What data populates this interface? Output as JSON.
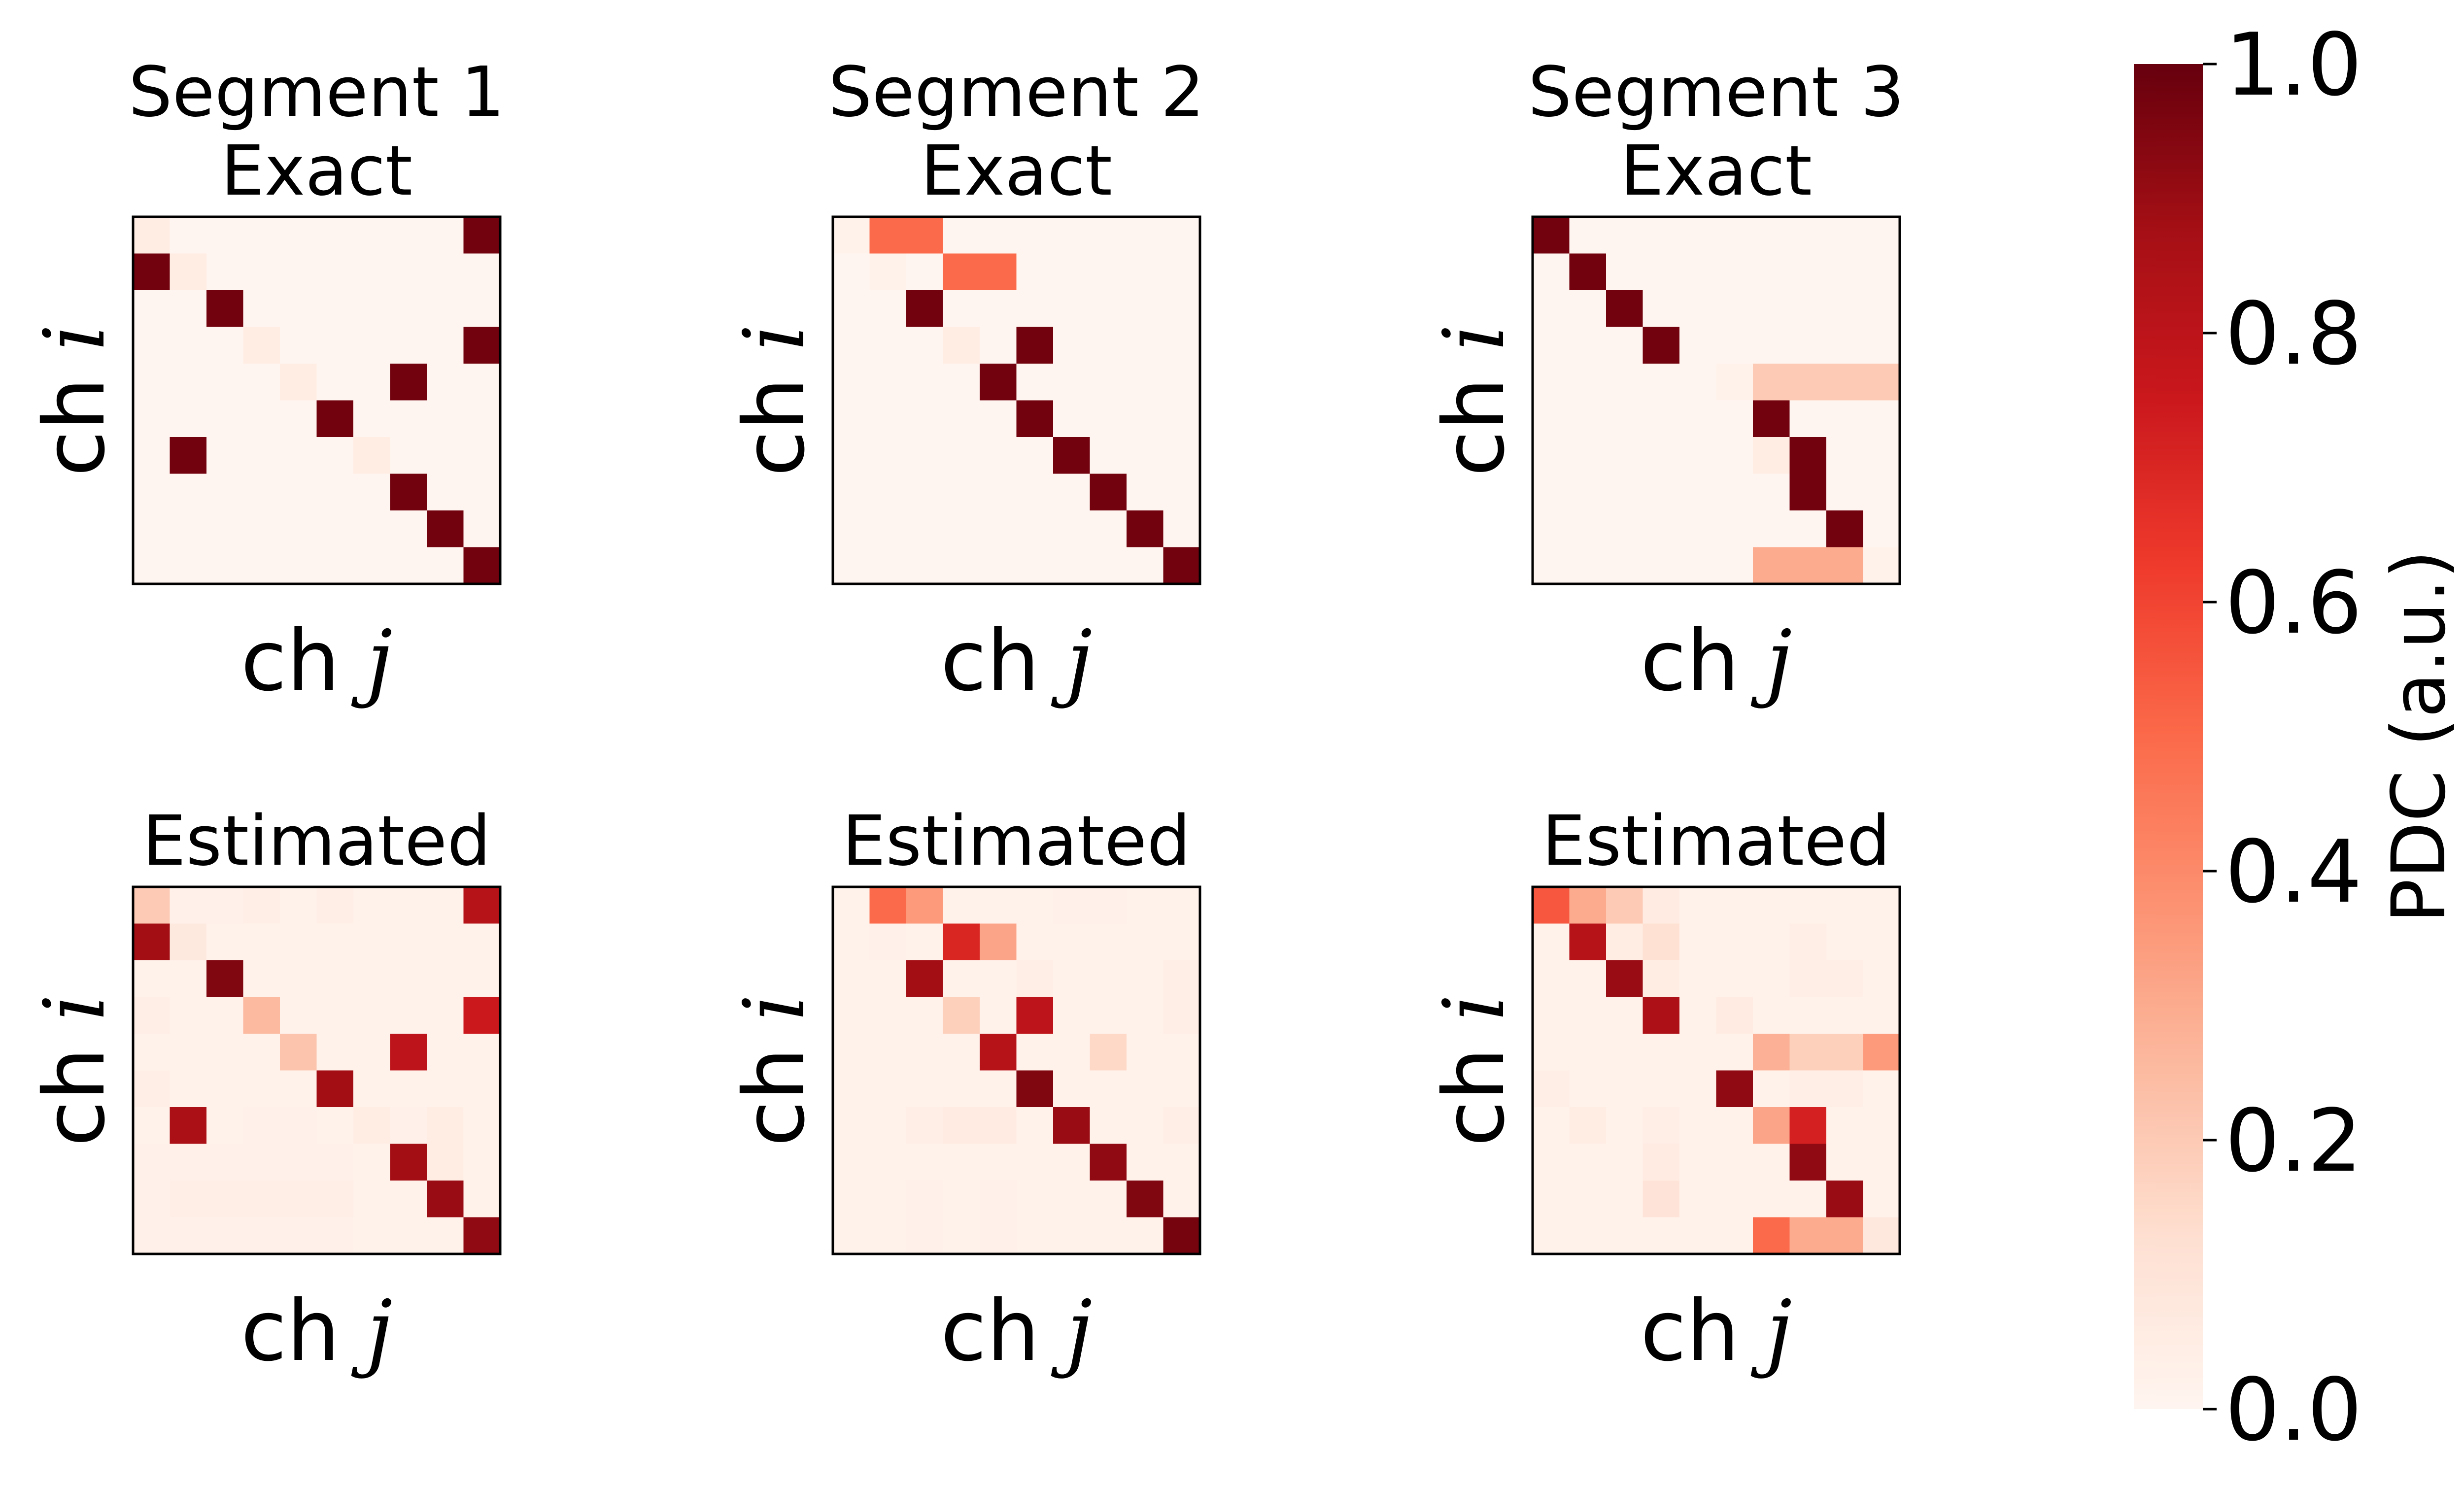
{
  "chart_data": [
    {
      "type": "heatmap",
      "title_lines": [
        "Segment 1",
        "Exact"
      ],
      "xlabel": {
        "prefix": "ch",
        "var": "j"
      },
      "ylabel": {
        "prefix": "ch",
        "var": "i"
      },
      "values": [
        [
          0.05,
          0,
          0,
          0,
          0,
          0,
          0,
          0,
          0,
          0.98
        ],
        [
          0.98,
          0.05,
          0,
          0,
          0,
          0,
          0,
          0,
          0,
          0
        ],
        [
          0,
          0,
          0.98,
          0,
          0,
          0,
          0,
          0,
          0,
          0
        ],
        [
          0,
          0,
          0,
          0.05,
          0,
          0,
          0,
          0,
          0,
          0.98
        ],
        [
          0,
          0,
          0,
          0,
          0.05,
          0,
          0,
          0.98,
          0,
          0
        ],
        [
          0,
          0,
          0,
          0,
          0,
          0.98,
          0,
          0,
          0,
          0
        ],
        [
          0,
          0.98,
          0,
          0,
          0,
          0,
          0.05,
          0,
          0,
          0
        ],
        [
          0,
          0,
          0,
          0,
          0,
          0,
          0,
          0.98,
          0,
          0
        ],
        [
          0,
          0,
          0,
          0,
          0,
          0,
          0,
          0,
          0.98,
          0
        ],
        [
          0,
          0,
          0,
          0,
          0,
          0,
          0,
          0,
          0,
          0.98
        ]
      ]
    },
    {
      "type": "heatmap",
      "title_lines": [
        "Segment 2",
        "Exact"
      ],
      "xlabel": {
        "prefix": "ch",
        "var": "j"
      },
      "ylabel": {
        "prefix": "ch",
        "var": "i"
      },
      "values": [
        [
          0.02,
          0.5,
          0.5,
          0,
          0,
          0,
          0,
          0,
          0,
          0
        ],
        [
          0,
          0.02,
          0,
          0.5,
          0.5,
          0,
          0,
          0,
          0,
          0
        ],
        [
          0,
          0,
          0.98,
          0,
          0,
          0,
          0,
          0,
          0,
          0
        ],
        [
          0,
          0,
          0,
          0.05,
          0,
          0.98,
          0,
          0,
          0,
          0
        ],
        [
          0,
          0,
          0,
          0,
          0.98,
          0,
          0,
          0,
          0,
          0
        ],
        [
          0,
          0,
          0,
          0,
          0,
          0.98,
          0,
          0,
          0,
          0
        ],
        [
          0,
          0,
          0,
          0,
          0,
          0,
          0.98,
          0,
          0,
          0
        ],
        [
          0,
          0,
          0,
          0,
          0,
          0,
          0,
          0.98,
          0,
          0
        ],
        [
          0,
          0,
          0,
          0,
          0,
          0,
          0,
          0,
          0.98,
          0
        ],
        [
          0,
          0,
          0,
          0,
          0,
          0,
          0,
          0,
          0,
          0.98
        ]
      ]
    },
    {
      "type": "heatmap",
      "title_lines": [
        "Segment 3",
        "Exact"
      ],
      "xlabel": {
        "prefix": "ch",
        "var": "j"
      },
      "ylabel": {
        "prefix": "ch",
        "var": "i"
      },
      "values": [
        [
          0.98,
          0,
          0,
          0,
          0,
          0,
          0,
          0,
          0,
          0
        ],
        [
          0,
          0.98,
          0,
          0,
          0,
          0,
          0,
          0,
          0,
          0
        ],
        [
          0,
          0,
          0.98,
          0,
          0,
          0,
          0,
          0,
          0,
          0
        ],
        [
          0,
          0,
          0,
          0.98,
          0,
          0,
          0,
          0,
          0,
          0
        ],
        [
          0,
          0,
          0,
          0,
          0,
          0.02,
          0.2,
          0.2,
          0.2,
          0.2
        ],
        [
          0,
          0,
          0,
          0,
          0,
          0,
          0.98,
          0,
          0,
          0
        ],
        [
          0,
          0,
          0,
          0,
          0,
          0,
          0.05,
          0.98,
          0,
          0
        ],
        [
          0,
          0,
          0,
          0,
          0,
          0,
          0,
          0.98,
          0,
          0
        ],
        [
          0,
          0,
          0,
          0,
          0,
          0,
          0,
          0,
          0.98,
          0
        ],
        [
          0,
          0,
          0,
          0,
          0,
          0,
          0.3,
          0.3,
          0.3,
          0.02
        ]
      ]
    },
    {
      "type": "heatmap",
      "title_lines": [
        "Estimated"
      ],
      "xlabel": {
        "prefix": "ch",
        "var": "j"
      },
      "ylabel": {
        "prefix": "ch",
        "var": "i"
      },
      "values": [
        [
          0.2,
          0.03,
          0.03,
          0.04,
          0.02,
          0.04,
          0.02,
          0.02,
          0.02,
          0.82
        ],
        [
          0.88,
          0.07,
          0.02,
          0.02,
          0.02,
          0.02,
          0.02,
          0.02,
          0.02,
          0.02
        ],
        [
          0.02,
          0.02,
          0.95,
          0.02,
          0.02,
          0.02,
          0.02,
          0.02,
          0.02,
          0.02
        ],
        [
          0.04,
          0.02,
          0.02,
          0.25,
          0.02,
          0.02,
          0.02,
          0.02,
          0.02,
          0.75
        ],
        [
          0.02,
          0.02,
          0.02,
          0.02,
          0.22,
          0.02,
          0.02,
          0.8,
          0.02,
          0.02
        ],
        [
          0.04,
          0.02,
          0.02,
          0.02,
          0.02,
          0.88,
          0.02,
          0.02,
          0.02,
          0.02
        ],
        [
          0.02,
          0.86,
          0.02,
          0.03,
          0.03,
          0.02,
          0.05,
          0.03,
          0.05,
          0.02
        ],
        [
          0.03,
          0.03,
          0.03,
          0.03,
          0.03,
          0.03,
          0.02,
          0.88,
          0.05,
          0.02
        ],
        [
          0.03,
          0.04,
          0.04,
          0.04,
          0.04,
          0.04,
          0.02,
          0.02,
          0.9,
          0.02
        ],
        [
          0.03,
          0.03,
          0.03,
          0.03,
          0.03,
          0.03,
          0.02,
          0.02,
          0.02,
          0.92
        ]
      ]
    },
    {
      "type": "heatmap",
      "title_lines": [
        "Estimated"
      ],
      "xlabel": {
        "prefix": "ch",
        "var": "j"
      },
      "ylabel": {
        "prefix": "ch",
        "var": "i"
      },
      "values": [
        [
          0.02,
          0.5,
          0.35,
          0.02,
          0.02,
          0.02,
          0.03,
          0.03,
          0.02,
          0.02
        ],
        [
          0.02,
          0.03,
          0.02,
          0.7,
          0.32,
          0.02,
          0.02,
          0.02,
          0.02,
          0.02
        ],
        [
          0.02,
          0.02,
          0.88,
          0.02,
          0.02,
          0.04,
          0.02,
          0.02,
          0.02,
          0.04
        ],
        [
          0.02,
          0.02,
          0.02,
          0.18,
          0.02,
          0.8,
          0.02,
          0.02,
          0.02,
          0.04
        ],
        [
          0.02,
          0.02,
          0.02,
          0.02,
          0.82,
          0.02,
          0.02,
          0.15,
          0.02,
          0.02
        ],
        [
          0.02,
          0.02,
          0.02,
          0.02,
          0.02,
          0.95,
          0.02,
          0.02,
          0.02,
          0.02
        ],
        [
          0.02,
          0.02,
          0.04,
          0.06,
          0.06,
          0.02,
          0.9,
          0.02,
          0.02,
          0.04
        ],
        [
          0.02,
          0.02,
          0.02,
          0.02,
          0.02,
          0.02,
          0.02,
          0.92,
          0.02,
          0.02
        ],
        [
          0.02,
          0.02,
          0.03,
          0.02,
          0.03,
          0.02,
          0.02,
          0.02,
          0.95,
          0.02
        ],
        [
          0.02,
          0.02,
          0.03,
          0.02,
          0.03,
          0.02,
          0.02,
          0.02,
          0.02,
          0.97
        ]
      ]
    },
    {
      "type": "heatmap",
      "title_lines": [
        "Estimated"
      ],
      "xlabel": {
        "prefix": "ch",
        "var": "j"
      },
      "ylabel": {
        "prefix": "ch",
        "var": "i"
      },
      "values": [
        [
          0.55,
          0.3,
          0.2,
          0.06,
          0.02,
          0.02,
          0.02,
          0.02,
          0.02,
          0.02
        ],
        [
          0.02,
          0.82,
          0.05,
          0.12,
          0.02,
          0.02,
          0.02,
          0.04,
          0.02,
          0.02
        ],
        [
          0.02,
          0.02,
          0.9,
          0.05,
          0.02,
          0.02,
          0.02,
          0.04,
          0.04,
          0.02
        ],
        [
          0.02,
          0.02,
          0.02,
          0.85,
          0.02,
          0.06,
          0.02,
          0.02,
          0.02,
          0.02
        ],
        [
          0.02,
          0.02,
          0.02,
          0.02,
          0.02,
          0.02,
          0.28,
          0.18,
          0.18,
          0.35
        ],
        [
          0.04,
          0.02,
          0.02,
          0.02,
          0.02,
          0.92,
          0.02,
          0.04,
          0.04,
          0.02
        ],
        [
          0.02,
          0.05,
          0.02,
          0.04,
          0.02,
          0.02,
          0.32,
          0.72,
          0.02,
          0.02
        ],
        [
          0.02,
          0.02,
          0.02,
          0.06,
          0.02,
          0.02,
          0.02,
          0.92,
          0.02,
          0.02
        ],
        [
          0.02,
          0.02,
          0.02,
          0.1,
          0.02,
          0.02,
          0.02,
          0.02,
          0.9,
          0.02
        ],
        [
          0.02,
          0.02,
          0.02,
          0.02,
          0.02,
          0.02,
          0.5,
          0.3,
          0.3,
          0.08
        ]
      ]
    }
  ],
  "colorbar": {
    "label": "PDC (a.u.)",
    "colormap": "Reds",
    "vmin": 0.0,
    "vmax": 1.0,
    "ticks": [
      "0.0",
      "0.2",
      "0.4",
      "0.6",
      "0.8",
      "1.0"
    ],
    "tick_values": [
      0.0,
      0.2,
      0.4,
      0.6,
      0.8,
      1.0
    ]
  },
  "colors": {
    "reds_stops": [
      "#fff5f0",
      "#fee0d2",
      "#fcbba1",
      "#fc9272",
      "#fb6a4a",
      "#ef3b2c",
      "#cb181d",
      "#a50f15",
      "#67000d"
    ]
  }
}
